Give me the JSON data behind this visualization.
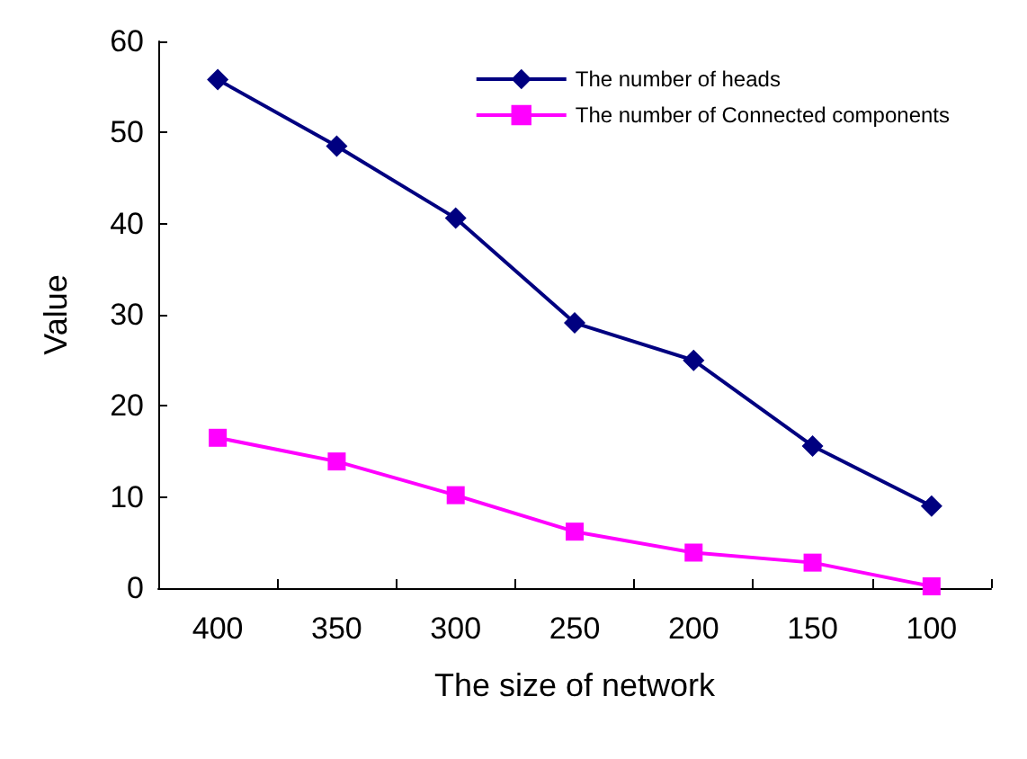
{
  "chart_data": {
    "type": "line",
    "xlabel": "The size of network",
    "ylabel": "Value",
    "categories": [
      "400",
      "350",
      "300",
      "250",
      "200",
      "150",
      "100"
    ],
    "series": [
      {
        "name": "The number of heads",
        "color": "#000080",
        "marker": "diamond",
        "values": [
          55.8,
          48.5,
          40.6,
          29.1,
          25,
          15.6,
          9
        ]
      },
      {
        "name": "The number of Connected components",
        "color": "#ff00ff",
        "marker": "square",
        "values": [
          16.5,
          13.9,
          10.2,
          6.2,
          3.9,
          2.8,
          0.2
        ]
      }
    ],
    "ylim": [
      0,
      60
    ],
    "yticks": [
      0,
      10,
      20,
      30,
      40,
      50,
      60
    ],
    "grid": false,
    "legend": "top right"
  }
}
